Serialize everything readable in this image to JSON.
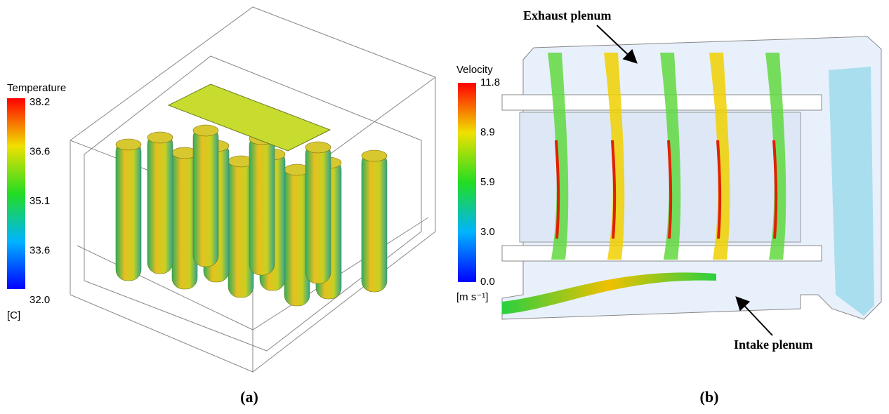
{
  "panels": [
    {
      "label": "(a)",
      "colorbar": {
        "title": "Temperature",
        "ticks": [
          "38.2",
          "36.6",
          "35.1",
          "33.6",
          "32.0"
        ],
        "unit": "[C]"
      }
    },
    {
      "label": "(b)",
      "colorbar": {
        "title": "Velocity",
        "ticks": [
          "11.8",
          "8.9",
          "5.9",
          "3.0",
          "0.0"
        ],
        "unit": "[m s⁻¹]"
      },
      "annotations": [
        "Exhaust plenum",
        "Intake plenum"
      ]
    }
  ]
}
